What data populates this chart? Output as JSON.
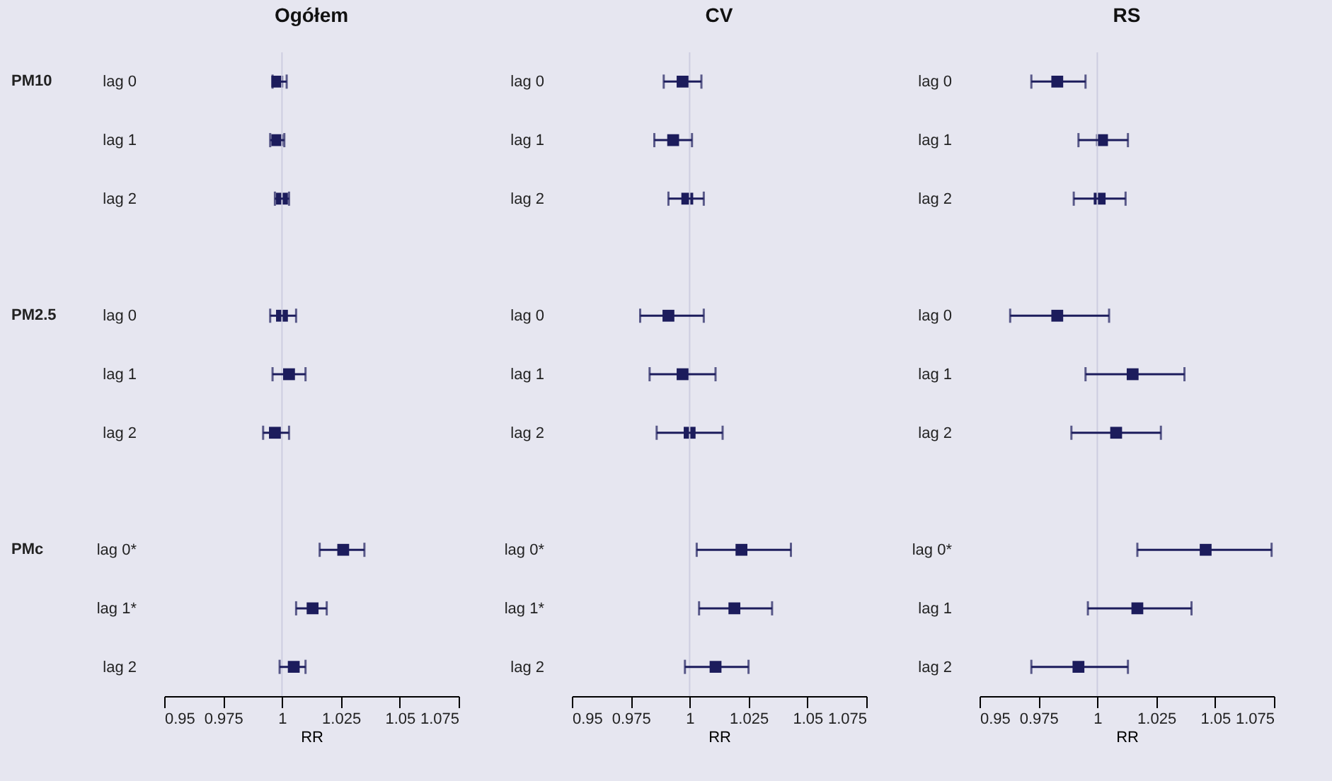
{
  "chart_data": [
    {
      "type": "scatter",
      "orientation": "horizontal",
      "title": "Ogółem",
      "xlabel": "RR",
      "categories": [
        "lag 0",
        "lag 1",
        "lag 2",
        null,
        "lag 0",
        "lag 1",
        "lag 2",
        null,
        "lag 0*",
        "lag 1*",
        "lag 2"
      ],
      "values": [
        0.998,
        0.998,
        1.0,
        null,
        1.0,
        1.003,
        0.997,
        null,
        1.026,
        1.013,
        1.005
      ],
      "errors": [
        [
          0.996,
          1.002
        ],
        [
          0.995,
          1.001
        ],
        [
          0.997,
          1.003
        ],
        null,
        [
          0.995,
          1.006
        ],
        [
          0.996,
          1.01
        ],
        [
          0.992,
          1.003
        ],
        null,
        [
          1.016,
          1.035
        ],
        [
          1.006,
          1.019
        ],
        [
          0.999,
          1.01
        ]
      ],
      "color": "#1c1c5c",
      "marker": "square",
      "grid": false,
      "xlim": [
        0.95,
        1.075
      ],
      "xticks": [
        0.95,
        0.975,
        1,
        1.025,
        1.05,
        1.075
      ],
      "ref_lines": [
        {
          "axis": "x",
          "value": 1,
          "color": "#cdcde0"
        }
      ],
      "annotations": [
        "PM10",
        "PM2.5",
        "PMc"
      ]
    },
    {
      "type": "scatter",
      "orientation": "horizontal",
      "title": "CV",
      "xlabel": "RR",
      "categories": [
        "lag 0",
        "lag 1",
        "lag 2",
        null,
        "lag 0",
        "lag 1",
        "lag 2",
        null,
        "lag 0*",
        "lag 1*",
        "lag 2"
      ],
      "values": [
        0.997,
        0.993,
        0.999,
        null,
        0.991,
        0.997,
        1.0,
        null,
        1.022,
        1.019,
        1.011
      ],
      "errors": [
        [
          0.989,
          1.005
        ],
        [
          0.985,
          1.001
        ],
        [
          0.991,
          1.006
        ],
        null,
        [
          0.979,
          1.006
        ],
        [
          0.983,
          1.011
        ],
        [
          0.986,
          1.014
        ],
        null,
        [
          1.003,
          1.043
        ],
        [
          1.004,
          1.035
        ],
        [
          0.998,
          1.025
        ]
      ],
      "color": "#1c1c5c",
      "marker": "square",
      "grid": false,
      "xlim": [
        0.95,
        1.075
      ],
      "xticks": [
        0.95,
        0.975,
        1,
        1.025,
        1.05,
        1.075
      ],
      "ref_lines": [
        {
          "axis": "x",
          "value": 1,
          "color": "#cdcde0"
        }
      ]
    },
    {
      "type": "scatter",
      "orientation": "horizontal",
      "title": "RS",
      "xlabel": "RR",
      "categories": [
        "lag 0",
        "lag 1",
        "lag 2",
        null,
        "lag 0",
        "lag 1",
        "lag 2",
        null,
        "lag 0*",
        "lag 1",
        "lag 2"
      ],
      "values": [
        0.983,
        1.002,
        1.001,
        null,
        0.983,
        1.015,
        1.008,
        null,
        1.046,
        1.017,
        0.992
      ],
      "errors": [
        [
          0.972,
          0.995
        ],
        [
          0.992,
          1.013
        ],
        [
          0.99,
          1.012
        ],
        null,
        [
          0.963,
          1.005
        ],
        [
          0.995,
          1.037
        ],
        [
          0.989,
          1.027
        ],
        null,
        [
          1.017,
          1.074
        ],
        [
          0.996,
          1.04
        ],
        [
          0.972,
          1.013
        ]
      ],
      "color": "#1c1c5c",
      "marker": "square",
      "grid": false,
      "xlim": [
        0.95,
        1.075
      ],
      "xticks": [
        0.95,
        0.975,
        1,
        1.025,
        1.05,
        1.075
      ],
      "ref_lines": [
        {
          "axis": "x",
          "value": 1,
          "color": "#cdcde0"
        }
      ]
    }
  ]
}
